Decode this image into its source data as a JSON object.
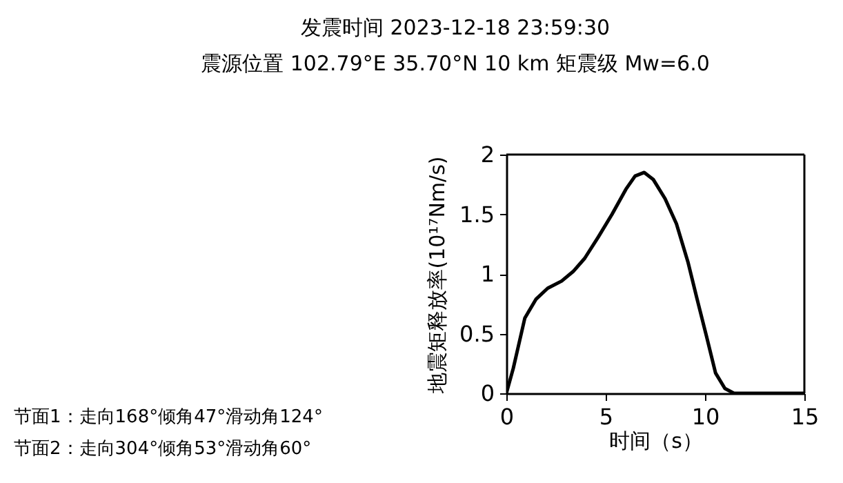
{
  "chart_data": {
    "type": "line",
    "title": "发震时间 2023-12-18 23:59:30",
    "subtitle": "震源位置 102.79°E 35.70°N 10 km   矩震级 Mw=6.0",
    "xlabel": "时间（s）",
    "ylabel": "地震矩释放率(10¹⁷Nm/s)",
    "annotations": [
      "节面1：走向168°倾角47°滑动角124°",
      "节面2：走向304°倾角53°滑动角60°"
    ],
    "series": [
      {
        "color": "#000000",
        "x": [
          0,
          0.35,
          0.93,
          1.5,
          2.08,
          2.78,
          3.36,
          3.94,
          4.63,
          5.32,
          6.02,
          6.48,
          6.94,
          7.4,
          7.99,
          8.56,
          9.14,
          9.6,
          10.07,
          10.53,
          11,
          11.46,
          15
        ],
        "values": [
          0,
          0.21,
          0.63,
          0.79,
          0.88,
          0.94,
          1.02,
          1.13,
          1.31,
          1.5,
          1.71,
          1.82,
          1.85,
          1.79,
          1.63,
          1.42,
          1.1,
          0.79,
          0.48,
          0.17,
          0.04,
          0,
          0
        ]
      }
    ],
    "xlim": [
      0,
      15
    ],
    "xticks": [
      0,
      5,
      10,
      15
    ],
    "ylim": [
      0,
      2
    ],
    "yticks": [
      0,
      0.5,
      1,
      1.5,
      2
    ],
    "grid": false,
    "line_style": "solid"
  }
}
